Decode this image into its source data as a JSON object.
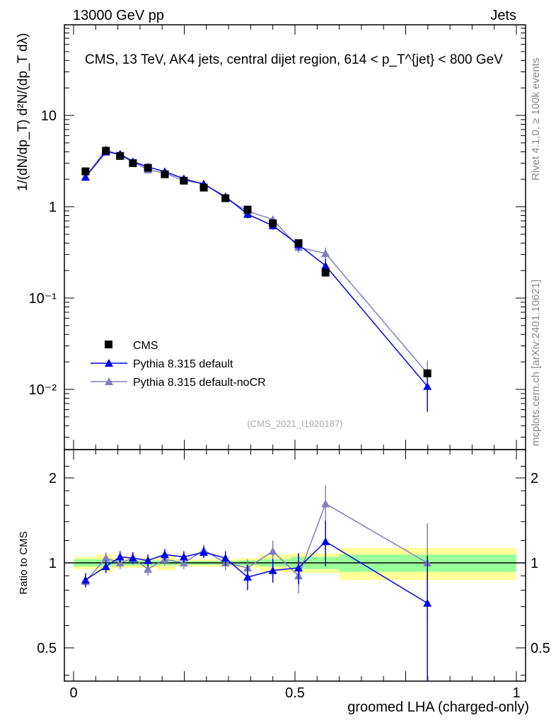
{
  "header": {
    "left": "13000 GeV pp",
    "right": "Jets"
  },
  "side_labels": {
    "rivet": "Rivet 4.1.0, ≥ 100k events",
    "mcplots": "mcplots.cern.ch [arXiv:2401.10621]"
  },
  "chart_data": [
    {
      "type": "line",
      "title": "CMS, 13 TeV, AK4 jets, central dijet region, 614 < p_T^{jet} < 800 GeV",
      "ylabel": "1/(dN/dp_T) d²N/(dp_T dλ)",
      "yscale": "log",
      "ylim": [
        0.0025,
        40
      ],
      "ytick_labels": [
        "10⁻²",
        "10⁻¹",
        "1",
        "10"
      ],
      "ytick_values": [
        0.01,
        0.1,
        1,
        10
      ],
      "annotation": "(CMS_2021_I1920187)",
      "x": [
        0.027,
        0.073,
        0.105,
        0.134,
        0.168,
        0.206,
        0.249,
        0.294,
        0.343,
        0.393,
        0.45,
        0.508,
        0.569,
        0.799
      ],
      "series": [
        {
          "name": "CMS",
          "color": "#000000",
          "marker": "square",
          "values": [
            2.44,
            4.1,
            3.6,
            3.0,
            2.67,
            2.27,
            1.93,
            1.62,
            1.24,
            0.93,
            0.66,
            0.4,
            0.19,
            0.015
          ]
        },
        {
          "name": "Pythia 8.315 default",
          "color": "#0000ee",
          "marker": "triangle",
          "ratio": [
            0.87,
            0.97,
            1.05,
            1.04,
            1.02,
            1.07,
            1.05,
            1.09,
            1.04,
            0.89,
            0.94,
            0.96,
            1.19,
            0.72
          ],
          "ratio_err": [
            0.05,
            0.05,
            0.05,
            0.05,
            0.05,
            0.05,
            0.05,
            0.05,
            0.06,
            0.09,
            0.09,
            0.12,
            0.22,
            0.34
          ]
        },
        {
          "name": "Pythia 8.315 default-noCR",
          "color": "#7f7fbf",
          "marker": "triangle",
          "ratio": [
            0.86,
            1.04,
            1.0,
            1.04,
            0.95,
            1.03,
            1.0,
            1.11,
            1.0,
            0.96,
            1.1,
            0.9,
            1.62,
            1.0
          ],
          "ratio_err": [
            0.04,
            0.05,
            0.05,
            0.05,
            0.05,
            0.05,
            0.05,
            0.05,
            0.06,
            0.07,
            0.1,
            0.12,
            0.26,
            0.38
          ]
        }
      ]
    },
    {
      "type": "line",
      "ylabel": "Ratio to CMS",
      "xlabel": "groomed LHA (charged-only)",
      "yscale": "log",
      "ylim": [
        0.4,
        2.3
      ],
      "xlim": [
        -0.02,
        1.02
      ],
      "ytick_labels": [
        "0.5",
        "1",
        "2"
      ],
      "ytick_values": [
        0.5,
        1,
        2
      ],
      "xtick_labels": [
        "0",
        "0.5",
        "1"
      ],
      "xtick_values": [
        0,
        0.5,
        1
      ],
      "bin_edges": [
        0,
        0.05,
        0.09,
        0.12,
        0.15,
        0.19,
        0.23,
        0.27,
        0.32,
        0.37,
        0.42,
        0.49,
        0.54,
        0.6,
        1.0
      ],
      "band_stat": [
        0.03,
        0.03,
        0.02,
        0.02,
        0.02,
        0.02,
        0.015,
        0.015,
        0.015,
        0.02,
        0.03,
        0.05,
        0.05,
        0.07
      ],
      "band_total": [
        0.05,
        0.07,
        0.04,
        0.04,
        0.04,
        0.06,
        0.03,
        0.03,
        0.03,
        0.04,
        0.07,
        0.08,
        0.08,
        0.13
      ]
    }
  ]
}
